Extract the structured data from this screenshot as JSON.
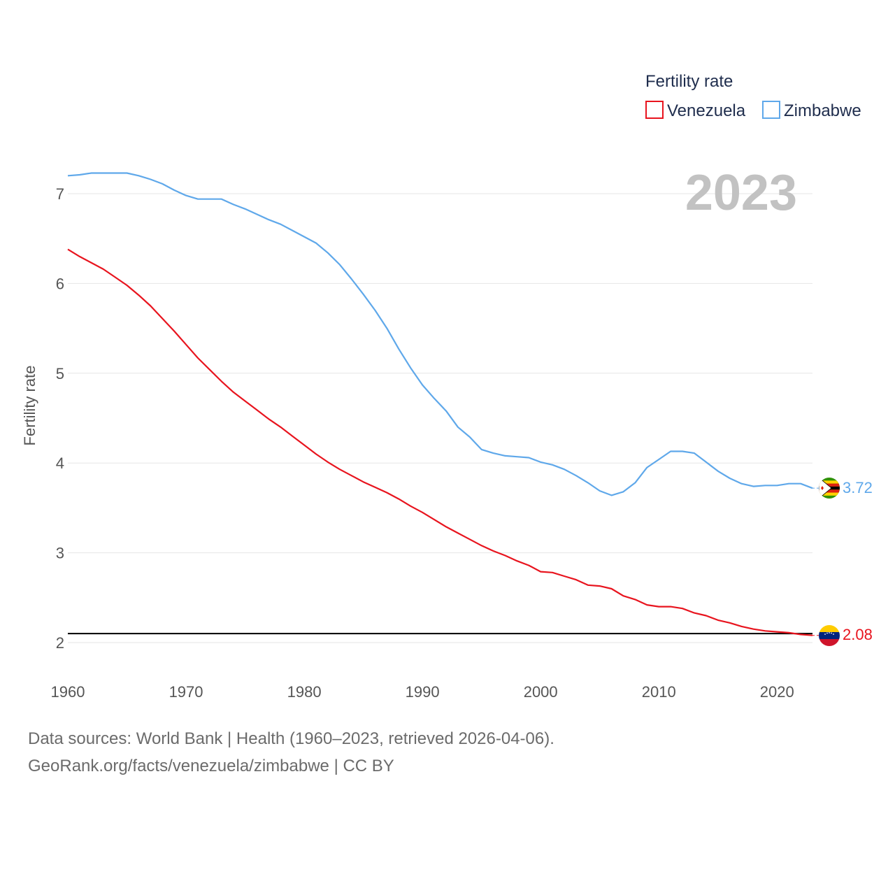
{
  "chart_data": {
    "type": "line",
    "title": "",
    "legend_title": "Fertility rate",
    "ylabel": "Fertility rate",
    "xlabel": "",
    "year_display": "2023",
    "xlim": [
      1960,
      2023
    ],
    "ylim": [
      1.75,
      7.5
    ],
    "x_ticks": [
      1960,
      1970,
      1980,
      1990,
      2000,
      2010,
      2020
    ],
    "y_ticks": [
      2,
      3,
      4,
      5,
      6,
      7
    ],
    "reference_line": 2.1,
    "x": [
      1960,
      1961,
      1962,
      1963,
      1964,
      1965,
      1966,
      1967,
      1968,
      1969,
      1970,
      1971,
      1972,
      1973,
      1974,
      1975,
      1976,
      1977,
      1978,
      1979,
      1980,
      1981,
      1982,
      1983,
      1984,
      1985,
      1986,
      1987,
      1988,
      1989,
      1990,
      1991,
      1992,
      1993,
      1994,
      1995,
      1996,
      1997,
      1998,
      1999,
      2000,
      2001,
      2002,
      2003,
      2004,
      2005,
      2006,
      2007,
      2008,
      2009,
      2010,
      2011,
      2012,
      2013,
      2014,
      2015,
      2016,
      2017,
      2018,
      2019,
      2020,
      2021,
      2022,
      2023
    ],
    "series": [
      {
        "name": "Venezuela",
        "color": "#e8141e",
        "end_label": "2.08",
        "values": [
          6.38,
          6.3,
          6.23,
          6.16,
          6.07,
          5.98,
          5.87,
          5.75,
          5.61,
          5.47,
          5.32,
          5.17,
          5.04,
          4.91,
          4.79,
          4.69,
          4.59,
          4.49,
          4.4,
          4.3,
          4.2,
          4.1,
          4.01,
          3.93,
          3.86,
          3.79,
          3.73,
          3.67,
          3.6,
          3.52,
          3.45,
          3.37,
          3.29,
          3.22,
          3.15,
          3.08,
          3.02,
          2.97,
          2.91,
          2.86,
          2.79,
          2.78,
          2.74,
          2.7,
          2.64,
          2.63,
          2.6,
          2.52,
          2.48,
          2.42,
          2.4,
          2.4,
          2.38,
          2.33,
          2.3,
          2.25,
          2.22,
          2.18,
          2.15,
          2.13,
          2.12,
          2.11,
          2.09,
          2.08
        ]
      },
      {
        "name": "Zimbabwe",
        "color": "#5fa8ea",
        "end_label": "3.72",
        "values": [
          7.2,
          7.21,
          7.23,
          7.23,
          7.23,
          7.23,
          7.2,
          7.16,
          7.11,
          7.04,
          6.98,
          6.94,
          6.94,
          6.94,
          6.88,
          6.83,
          6.77,
          6.71,
          6.66,
          6.59,
          6.52,
          6.45,
          6.34,
          6.21,
          6.05,
          5.88,
          5.7,
          5.5,
          5.27,
          5.06,
          4.87,
          4.72,
          4.58,
          4.4,
          4.29,
          4.15,
          4.11,
          4.08,
          4.07,
          4.06,
          4.01,
          3.98,
          3.93,
          3.86,
          3.78,
          3.69,
          3.64,
          3.68,
          3.78,
          3.95,
          4.04,
          4.13,
          4.13,
          4.11,
          4.01,
          3.91,
          3.83,
          3.77,
          3.74,
          3.75,
          3.75,
          3.77,
          3.77,
          3.72
        ]
      }
    ]
  },
  "footer": {
    "line1": "Data sources: World Bank | Health (1960–2023, retrieved 2026-04-06).",
    "line2": "GeoRank.org/facts/venezuela/zimbabwe | CC BY"
  }
}
